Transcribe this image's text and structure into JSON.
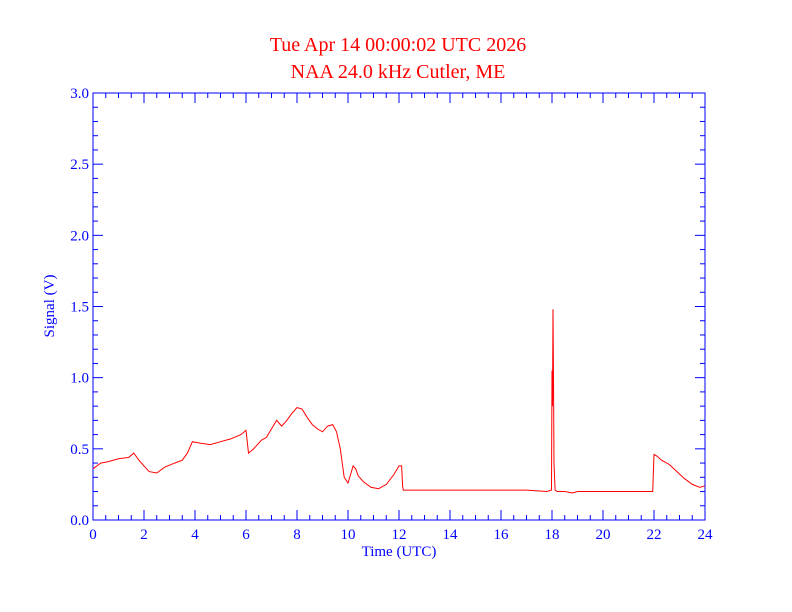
{
  "chart_data": {
    "type": "line",
    "title": "Tue Apr 14 00:00:02 UTC 2026",
    "subtitle": "NAA 24.0 kHz Cutler, ME",
    "xlabel": "Time (UTC)",
    "ylabel": "Signal (V)",
    "xlim": [
      0,
      24
    ],
    "ylim": [
      0,
      3.0
    ],
    "x_ticks": [
      0,
      2,
      4,
      6,
      8,
      10,
      12,
      14,
      16,
      18,
      20,
      22,
      24
    ],
    "x_tick_labels": [
      "0",
      "2",
      "4",
      "6",
      "8",
      "10",
      "12",
      "14",
      "16",
      "18",
      "20",
      "22",
      "24"
    ],
    "y_ticks": [
      0,
      0.5,
      1.0,
      1.5,
      2.0,
      2.5,
      3.0
    ],
    "y_tick_labels": [
      "0.0",
      "0.5",
      "1.0",
      "1.5",
      "2.0",
      "2.5",
      "3.0"
    ],
    "grid": false,
    "colors": {
      "axis": "#0000ff",
      "title": "#ff0000",
      "line": "#ff0000"
    },
    "x": [
      0,
      0.3,
      0.6,
      1.0,
      1.4,
      1.6,
      1.8,
      2.0,
      2.2,
      2.5,
      2.8,
      3.2,
      3.5,
      3.7,
      3.9,
      4.2,
      4.6,
      5.0,
      5.4,
      5.8,
      6.0,
      6.1,
      6.3,
      6.6,
      6.8,
      7.0,
      7.2,
      7.4,
      7.6,
      7.8,
      8.0,
      8.2,
      8.4,
      8.6,
      8.8,
      9.0,
      9.2,
      9.4,
      9.55,
      9.7,
      9.85,
      10.0,
      10.1,
      10.2,
      10.3,
      10.4,
      10.6,
      10.9,
      11.2,
      11.5,
      11.8,
      12.0,
      12.1,
      12.14,
      12.17,
      12.3,
      13.0,
      14.0,
      15.0,
      16.0,
      17.0,
      17.8,
      17.98,
      18.0,
      18.02,
      18.04,
      18.06,
      18.08,
      18.12,
      18.2,
      18.5,
      18.8,
      19.0,
      19.2,
      19.5,
      20.0,
      20.5,
      21.0,
      21.5,
      21.95,
      22.0,
      22.1,
      22.3,
      22.6,
      22.9,
      23.2,
      23.5,
      23.8,
      24.0
    ],
    "values": [
      0.36,
      0.4,
      0.41,
      0.43,
      0.44,
      0.47,
      0.42,
      0.38,
      0.34,
      0.33,
      0.37,
      0.4,
      0.42,
      0.47,
      0.55,
      0.54,
      0.53,
      0.55,
      0.57,
      0.6,
      0.63,
      0.47,
      0.5,
      0.56,
      0.58,
      0.64,
      0.7,
      0.66,
      0.7,
      0.75,
      0.79,
      0.78,
      0.72,
      0.67,
      0.64,
      0.62,
      0.66,
      0.67,
      0.62,
      0.5,
      0.3,
      0.26,
      0.32,
      0.38,
      0.36,
      0.31,
      0.27,
      0.23,
      0.22,
      0.25,
      0.32,
      0.38,
      0.38,
      0.24,
      0.21,
      0.21,
      0.21,
      0.21,
      0.21,
      0.21,
      0.21,
      0.2,
      0.21,
      1.05,
      0.8,
      1.48,
      1.0,
      0.4,
      0.21,
      0.2,
      0.2,
      0.19,
      0.2,
      0.2,
      0.2,
      0.2,
      0.2,
      0.2,
      0.2,
      0.2,
      0.46,
      0.45,
      0.42,
      0.39,
      0.34,
      0.29,
      0.25,
      0.23,
      0.24
    ]
  }
}
